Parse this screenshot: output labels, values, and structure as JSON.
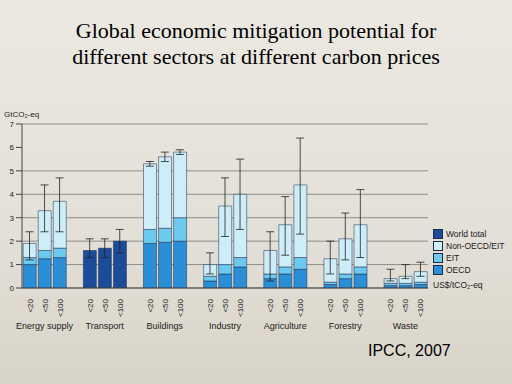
{
  "chart_data": {
    "type": "bar",
    "title": "Global economic mitigation potential for\ndifferent sectors at different carbon prices",
    "y_label": "GtCO₂-eq",
    "x_label": "US$/tCO₂-eq",
    "source": "IPCC, 2007",
    "categories": [
      "<20",
      "<50",
      "<100",
      null,
      "<20",
      "<50",
      "<100",
      null,
      "<20",
      "<50",
      "<100",
      null,
      "<20",
      "<50",
      "<100",
      null,
      "<20",
      "<50",
      "<100",
      null,
      "<20",
      "<50",
      "<100",
      null,
      "<20",
      "<50",
      "<100"
    ],
    "groups": [
      "Energy supply",
      "Transport",
      "Buildings",
      "Industry",
      "Agriculture",
      "Forestry",
      "Waste"
    ],
    "series": [
      {
        "name": "OECD",
        "color": "#2a8fd6",
        "values": [
          1.0,
          1.25,
          1.3,
          null,
          null,
          null,
          null,
          null,
          1.9,
          1.95,
          2.0,
          null,
          0.3,
          0.6,
          0.9,
          null,
          0.4,
          0.6,
          0.8,
          null,
          0.15,
          0.4,
          0.6,
          null,
          0.1,
          0.1,
          0.15
        ]
      },
      {
        "name": "EIT",
        "color": "#6cc9f0",
        "values": [
          0.3,
          0.35,
          0.4,
          null,
          null,
          null,
          null,
          null,
          0.6,
          0.6,
          1.0,
          null,
          0.2,
          0.4,
          0.4,
          null,
          0.2,
          0.3,
          0.5,
          null,
          0.1,
          0.2,
          0.3,
          null,
          0.1,
          0.1,
          0.1
        ]
      },
      {
        "name": "Non-OECD/EIT",
        "color": "#cdeef8",
        "values": [
          0.6,
          1.7,
          2.0,
          null,
          null,
          null,
          null,
          null,
          2.8,
          3.05,
          2.8,
          null,
          0.5,
          2.5,
          2.7,
          null,
          1.0,
          1.8,
          3.1,
          null,
          1.0,
          1.5,
          1.8,
          null,
          0.2,
          0.3,
          0.45
        ]
      },
      {
        "name": "World total",
        "color": "#1c4b9a",
        "values": [
          null,
          null,
          null,
          null,
          1.6,
          1.7,
          2.0,
          null,
          null,
          null,
          null,
          null,
          null,
          null,
          null,
          null,
          null,
          null,
          null,
          null,
          null,
          null,
          null,
          null,
          null,
          null,
          null
        ]
      }
    ],
    "error_low": [
      1.2,
      2.4,
      2.4,
      null,
      1.3,
      1.3,
      1.5,
      null,
      5.2,
      5.4,
      5.7,
      null,
      0.6,
      2.2,
      2.5,
      null,
      0.3,
      1.4,
      2.3,
      null,
      0.6,
      1.2,
      1.3,
      null,
      0.3,
      0.4,
      0.5
    ],
    "error_high": [
      2.4,
      4.4,
      4.7,
      null,
      2.1,
      2.1,
      2.5,
      null,
      5.4,
      5.8,
      5.9,
      null,
      1.5,
      4.7,
      5.5,
      null,
      2.4,
      3.9,
      6.4,
      null,
      2.0,
      3.2,
      4.2,
      null,
      0.8,
      1.0,
      1.1
    ],
    "ylim": [
      0,
      7
    ],
    "yticks": [
      0,
      1,
      2,
      3,
      4,
      5,
      6,
      7
    ],
    "stacked": true,
    "grid": true,
    "legend": "right"
  }
}
